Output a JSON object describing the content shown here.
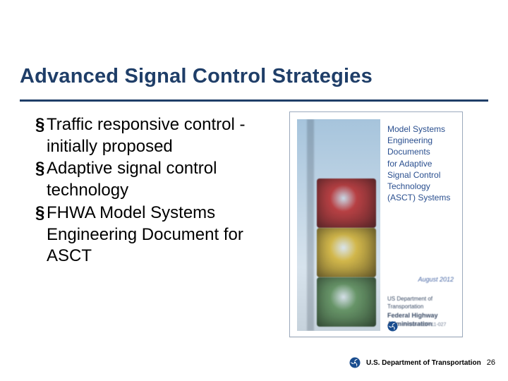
{
  "title": {
    "text": "Advanced Signal Control Strategies",
    "color": "#1f3e68",
    "fontsize": 29,
    "underline_width": 664,
    "underline_color": "#1f3e68"
  },
  "bullets": {
    "fontsize": 24,
    "color": "#000000",
    "marker": "§",
    "items": [
      "Traffic responsive control - initially proposed",
      "Adaptive signal control technology",
      "FHWA Model Systems Engineering Document for ASCT"
    ]
  },
  "cover": {
    "photo": {
      "sky_top_color": "#a6c4dc",
      "sky_bottom_color": "#d7e3ed",
      "post_color": "#3a4754"
    },
    "signal_colors": {
      "red": "#b63436",
      "yellow": "#d2b43e",
      "green": "#5f8f5e"
    },
    "title_lines": [
      "Model Systems",
      "Engineering",
      "Documents",
      "for Adaptive",
      "Signal Control",
      "Technology",
      "(ASCT) Systems"
    ],
    "title_color": "#2a4f8f",
    "date": "August 2012",
    "agency_line1": "US Department of Transportation",
    "agency_line2": "Federal Highway Administration",
    "op_number": "FHWA-HOP-11-027"
  },
  "footer": {
    "org": "U.S. Department of Transportation",
    "page": "26",
    "logo_outer": "#1a4d8f",
    "logo_inner": "#ffffff"
  }
}
